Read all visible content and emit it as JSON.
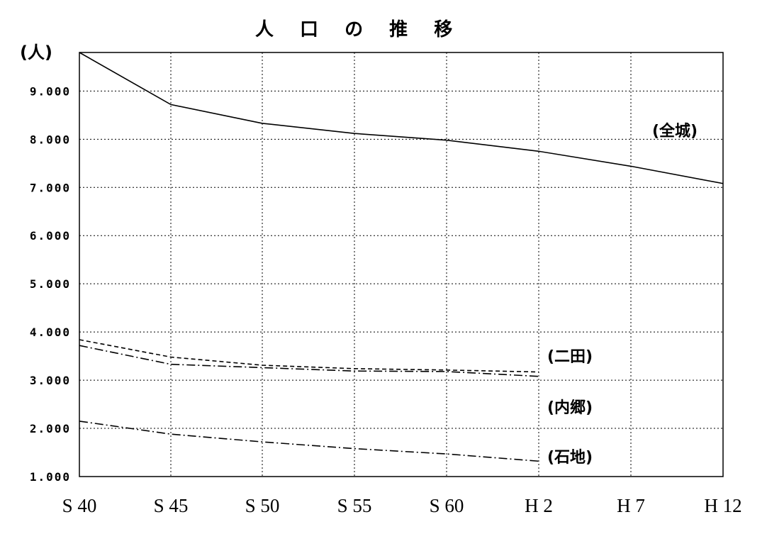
{
  "chart_data": {
    "type": "line",
    "title": "人 口 の 推 移",
    "ylabel": "(人)",
    "xlabel": "",
    "categories": [
      "S 40",
      "S 45",
      "S 50",
      "S 55",
      "S 60",
      "H 2",
      "H 7",
      "H 12"
    ],
    "ylim": [
      1000,
      9800
    ],
    "yticks": [
      1000,
      2000,
      3000,
      4000,
      5000,
      6000,
      7000,
      8000,
      9000
    ],
    "ytick_labels": [
      "1.000",
      "2.000",
      "3.000",
      "4.000",
      "5.000",
      "6.000",
      "7.000",
      "8.000",
      "9.000"
    ],
    "grid": true,
    "series": [
      {
        "name": "(全城)",
        "style": "solid",
        "values": [
          9800,
          8720,
          8330,
          8120,
          7980,
          7750,
          7440,
          7080
        ]
      },
      {
        "name": "(二田)",
        "style": "dashed",
        "values": [
          3840,
          3480,
          3310,
          3240,
          3210,
          3170,
          null,
          null
        ]
      },
      {
        "name": "(内郷)",
        "style": "dashdot",
        "values": [
          3720,
          3330,
          3260,
          3190,
          3180,
          3080,
          null,
          null
        ]
      },
      {
        "name": "(石地)",
        "style": "dashdot",
        "values": [
          2150,
          1880,
          1720,
          1580,
          1470,
          1320,
          null,
          null
        ]
      }
    ]
  }
}
